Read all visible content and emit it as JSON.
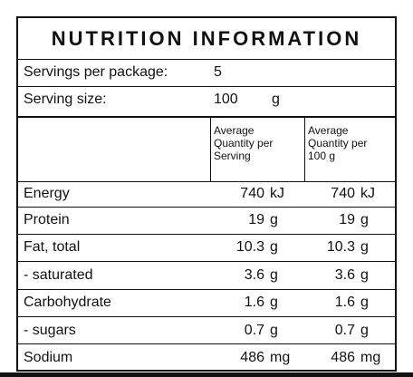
{
  "title": "NUTRITION INFORMATION",
  "servings_per_package": {
    "label": "Servings per package:",
    "value": "5"
  },
  "serving_size": {
    "label": "Serving size:",
    "value": "100",
    "unit": "g"
  },
  "columns": {
    "per_serving": "Average\nQuantity per\nServing",
    "per_100g": "Average\nQuantity per\n100 g"
  },
  "rows": [
    {
      "label": "Energy",
      "per_serving": "740",
      "per_serving_unit": "kJ",
      "per_100g": "740",
      "per_100g_unit": "kJ"
    },
    {
      "label": "Protein",
      "per_serving": "19",
      "per_serving_unit": "g",
      "per_100g": "19",
      "per_100g_unit": "g"
    },
    {
      "label": "Fat, total",
      "per_serving": "10.3",
      "per_serving_unit": "g",
      "per_100g": "10.3",
      "per_100g_unit": "g"
    },
    {
      "label": "- saturated",
      "per_serving": "3.6",
      "per_serving_unit": "g",
      "per_100g": "3.6",
      "per_100g_unit": "g"
    },
    {
      "label": "Carbohydrate",
      "per_serving": "1.6",
      "per_serving_unit": "g",
      "per_100g": "1.6",
      "per_100g_unit": "g"
    },
    {
      "label": "- sugars",
      "per_serving": "0.7",
      "per_serving_unit": "g",
      "per_100g": "0.7",
      "per_100g_unit": "g"
    },
    {
      "label": "Sodium",
      "per_serving": "486",
      "per_serving_unit": "mg",
      "per_100g": "486",
      "per_100g_unit": "mg"
    }
  ]
}
